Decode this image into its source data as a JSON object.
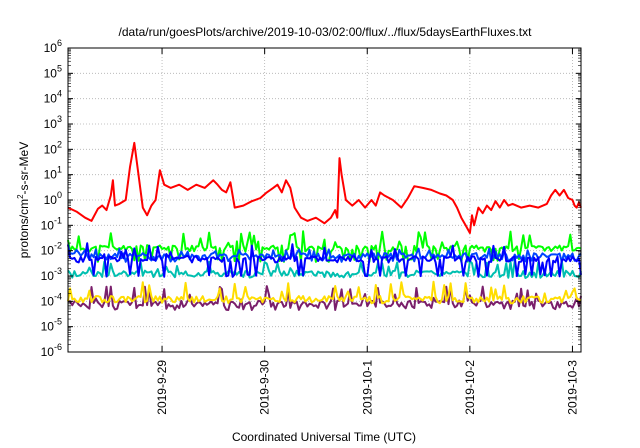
{
  "chart_data": {
    "type": "line",
    "title": "/data/run/goesPlots/archive/2019-10-03/02:00/flux/../flux/5daysEarthFluxes.txt",
    "xlabel": "Coordinated Universal Time (UTC)",
    "ylabel_parts": [
      "protons/cm",
      "2",
      "-s-sr-MeV"
    ],
    "yscale": "log",
    "ylim": [
      1e-06,
      1000000.0
    ],
    "y_ticks": [
      {
        "base": "10",
        "exp": "-6",
        "value": 1e-06
      },
      {
        "base": "10",
        "exp": "-5",
        "value": 1e-05
      },
      {
        "base": "10",
        "exp": "-4",
        "value": 0.0001
      },
      {
        "base": "10",
        "exp": "-3",
        "value": 0.001
      },
      {
        "base": "10",
        "exp": "-2",
        "value": 0.01
      },
      {
        "base": "10",
        "exp": "-1",
        "value": 0.1
      },
      {
        "base": "10",
        "exp": "0",
        "value": 1
      },
      {
        "base": "10",
        "exp": "1",
        "value": 10
      },
      {
        "base": "10",
        "exp": "2",
        "value": 100
      },
      {
        "base": "10",
        "exp": "3",
        "value": 1000
      },
      {
        "base": "10",
        "exp": "4",
        "value": 10000
      },
      {
        "base": "10",
        "exp": "5",
        "value": 100000
      },
      {
        "base": "10",
        "exp": "6",
        "value": 1000000
      }
    ],
    "xlim": [
      "2019-09-28 02:00",
      "2019-10-03 02:00"
    ],
    "x_ticks": [
      {
        "label": "2019-9-29",
        "value": "2019-09-29 00:00"
      },
      {
        "label": "2019-9-30",
        "value": "2019-09-30 00:00"
      },
      {
        "label": "2019-10-1",
        "value": "2019-10-01 00:00"
      },
      {
        "label": "2019-10-2",
        "value": "2019-10-02 00:00"
      },
      {
        "label": "2019-10-3",
        "value": "2019-10-03 00:00"
      }
    ],
    "grid": true,
    "legend": "none",
    "series": [
      {
        "color": "#ff0000",
        "values": [
          [
            "2019-09-28 02:00",
            0.5
          ],
          [
            "2019-09-28 04:00",
            0.35
          ],
          [
            "2019-09-28 06:00",
            0.2
          ],
          [
            "2019-09-28 07:30",
            0.15
          ],
          [
            "2019-09-28 09:00",
            0.45
          ],
          [
            "2019-09-28 10:00",
            0.6
          ],
          [
            "2019-09-28 11:00",
            0.4
          ],
          [
            "2019-09-28 12:00",
            1.5
          ],
          [
            "2019-09-28 12:30",
            6
          ],
          [
            "2019-09-28 13:00",
            0.6
          ],
          [
            "2019-09-28 14:00",
            0.7
          ],
          [
            "2019-09-28 15:30",
            1.0
          ],
          [
            "2019-09-28 16:30",
            20
          ],
          [
            "2019-09-28 17:30",
            180
          ],
          [
            "2019-09-28 18:30",
            10
          ],
          [
            "2019-09-28 19:30",
            0.5
          ],
          [
            "2019-09-28 20:30",
            0.25
          ],
          [
            "2019-09-28 21:30",
            0.6
          ],
          [
            "2019-09-28 22:30",
            1.0
          ],
          [
            "2019-09-28 23:30",
            15
          ],
          [
            "2019-09-29 00:30",
            4
          ],
          [
            "2019-09-29 02:00",
            3
          ],
          [
            "2019-09-29 04:00",
            4
          ],
          [
            "2019-09-29 06:00",
            2.5
          ],
          [
            "2019-09-29 08:00",
            4
          ],
          [
            "2019-09-29 10:00",
            3
          ],
          [
            "2019-09-29 12:00",
            6
          ],
          [
            "2019-09-29 13:00",
            4
          ],
          [
            "2019-09-29 14:00",
            2.5
          ],
          [
            "2019-09-29 15:00",
            2
          ],
          [
            "2019-09-29 16:00",
            5
          ],
          [
            "2019-09-29 17:00",
            0.5
          ],
          [
            "2019-09-29 19:00",
            0.6
          ],
          [
            "2019-09-29 21:00",
            0.9
          ],
          [
            "2019-09-29 23:00",
            1.2
          ],
          [
            "2019-09-30 00:30",
            2
          ],
          [
            "2019-09-30 02:00",
            3
          ],
          [
            "2019-09-30 03:00",
            4
          ],
          [
            "2019-09-30 04:00",
            2
          ],
          [
            "2019-09-30 05:00",
            6
          ],
          [
            "2019-09-30 06:00",
            3
          ],
          [
            "2019-09-30 07:00",
            0.5
          ],
          [
            "2019-09-30 08:30",
            0.2
          ],
          [
            "2019-09-30 10:00",
            0.15
          ],
          [
            "2019-09-30 12:00",
            0.2
          ],
          [
            "2019-09-30 14:00",
            0.12
          ],
          [
            "2019-09-30 15:30",
            0.2
          ],
          [
            "2019-09-30 16:30",
            0.4
          ],
          [
            "2019-09-30 17:00",
            0.2
          ],
          [
            "2019-09-30 17:30",
            45
          ],
          [
            "2019-09-30 18:00",
            10
          ],
          [
            "2019-09-30 19:00",
            1.0
          ],
          [
            "2019-09-30 20:30",
            0.6
          ],
          [
            "2019-09-30 22:00",
            1.0
          ],
          [
            "2019-09-30 23:30",
            0.5
          ],
          [
            "2019-10-01 01:00",
            1.0
          ],
          [
            "2019-10-01 02:00",
            0.6
          ],
          [
            "2019-10-01 03:00",
            2
          ],
          [
            "2019-10-01 04:00",
            1.5
          ],
          [
            "2019-10-01 06:00",
            1.0
          ],
          [
            "2019-10-01 08:00",
            0.5
          ],
          [
            "2019-10-01 09:30",
            1.2
          ],
          [
            "2019-10-01 11:00",
            3.5
          ],
          [
            "2019-10-01 13:00",
            3
          ],
          [
            "2019-10-01 15:00",
            2.5
          ],
          [
            "2019-10-01 17:00",
            1.8
          ],
          [
            "2019-10-01 18:30",
            1.5
          ],
          [
            "2019-10-01 20:00",
            1.0
          ],
          [
            "2019-10-01 21:00",
            0.5
          ],
          [
            "2019-10-01 22:00",
            0.2
          ],
          [
            "2019-10-01 23:00",
            0.1
          ],
          [
            "2019-10-02 00:00",
            0.05
          ],
          [
            "2019-10-02 00:30",
            0.25
          ],
          [
            "2019-10-02 01:00",
            0.1
          ],
          [
            "2019-10-02 02:00",
            0.5
          ],
          [
            "2019-10-02 03:00",
            0.3
          ],
          [
            "2019-10-02 04:00",
            0.6
          ],
          [
            "2019-10-02 05:00",
            0.4
          ],
          [
            "2019-10-02 06:00",
            0.9
          ],
          [
            "2019-10-02 07:00",
            0.5
          ],
          [
            "2019-10-02 08:00",
            1.0
          ],
          [
            "2019-10-02 09:00",
            0.6
          ],
          [
            "2019-10-02 10:00",
            0.7
          ],
          [
            "2019-10-02 12:00",
            0.5
          ],
          [
            "2019-10-02 14:00",
            0.6
          ],
          [
            "2019-10-02 16:00",
            0.5
          ],
          [
            "2019-10-02 18:00",
            0.7
          ],
          [
            "2019-10-02 19:00",
            1.5
          ],
          [
            "2019-10-02 20:00",
            2.5
          ],
          [
            "2019-10-02 21:00",
            1.5
          ],
          [
            "2019-10-02 22:00",
            2.5
          ],
          [
            "2019-10-02 23:00",
            1.2
          ],
          [
            "2019-10-03 00:00",
            1.0
          ],
          [
            "2019-10-03 00:30",
            0.6
          ],
          [
            "2019-10-03 01:00",
            0.5
          ],
          [
            "2019-10-03 01:30",
            0.8
          ],
          [
            "2019-10-03 02:00",
            0.5
          ]
        ]
      },
      {
        "color": "#00ff00",
        "base": 0.012,
        "spike": 0.06,
        "floor": 0.004,
        "seed": 11
      },
      {
        "color": "#0000ff",
        "base": 0.0045,
        "spike": 0.02,
        "floor": 0.001,
        "seed": 23
      },
      {
        "color": "#0044ff",
        "base": 0.006,
        "spike": 0.012,
        "floor": 0.004,
        "seed": 37
      },
      {
        "color": "#00bfb0",
        "base": 0.0012,
        "spike": 0.004,
        "floor": 0.0009,
        "seed": 41
      },
      {
        "color": "#ffdd00",
        "base": 0.00012,
        "spike": 0.0006,
        "floor": 9e-05,
        "seed": 53
      },
      {
        "color": "#7a1f6b",
        "base": 8e-05,
        "spike": 0.0004,
        "floor": 5e-05,
        "seed": 67
      }
    ]
  }
}
